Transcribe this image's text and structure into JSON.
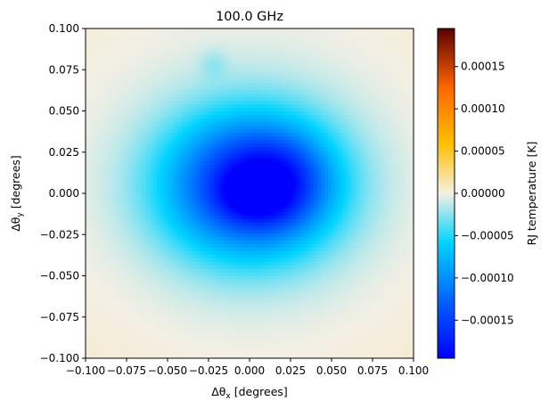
{
  "chart_data": {
    "type": "heatmap",
    "title": "100.0 GHz",
    "xlabel": "Δθx [degrees]",
    "ylabel": "Δθy [degrees]",
    "xlabel_parts": {
      "prefix": "Δθ",
      "sub": "x",
      "suffix": " [degrees]"
    },
    "ylabel_parts": {
      "prefix": "Δθ",
      "sub": "y",
      "suffix": " [degrees]"
    },
    "xlim": [
      -0.1,
      0.1
    ],
    "ylim": [
      -0.1,
      0.1
    ],
    "x_ticks": [
      -0.1,
      -0.075,
      -0.05,
      -0.025,
      0.0,
      0.025,
      0.05,
      0.075,
      0.1
    ],
    "x_tick_labels": [
      "−0.100",
      "−0.075",
      "−0.050",
      "−0.025",
      "0.000",
      "0.025",
      "0.050",
      "0.075",
      "0.100"
    ],
    "y_ticks": [
      0.1,
      0.075,
      0.05,
      0.025,
      0.0,
      -0.025,
      -0.05,
      -0.075,
      -0.1
    ],
    "y_tick_labels": [
      "0.100",
      "0.075",
      "0.050",
      "0.025",
      "0.000",
      "−0.025",
      "−0.050",
      "−0.075",
      "−0.100"
    ],
    "grid": false,
    "colorbar": {
      "label": "RJ temperature [K]",
      "range": [
        -0.000195,
        0.000195
      ],
      "ticks": [
        0.00015,
        0.0001,
        5e-05,
        0.0,
        -5e-05,
        -0.0001,
        -0.00015
      ],
      "tick_labels": [
        "0.00015",
        "0.00010",
        "0.00005",
        "0.00000",
        "−0.00005",
        "−0.00010",
        "−0.00015"
      ],
      "colors": [
        [
          0.0,
          "#0000ff"
        ],
        [
          0.17,
          "#0060ff"
        ],
        [
          0.35,
          "#00d4ff"
        ],
        [
          0.5,
          "#f4efe4"
        ],
        [
          0.65,
          "#ffc000"
        ],
        [
          0.82,
          "#ff6600"
        ],
        [
          1.0,
          "#5a0000"
        ]
      ]
    },
    "features": [
      {
        "kind": "gaussian",
        "x": 0.0,
        "y": 0.005,
        "sx": 0.036,
        "sy": 0.03,
        "amp": -0.00017
      },
      {
        "kind": "gaussian",
        "x": 0.018,
        "y": 0.008,
        "sx": 0.02,
        "sy": 0.018,
        "amp": -6e-05
      },
      {
        "kind": "gaussian",
        "x": 0.01,
        "y": -0.005,
        "sx": 0.012,
        "sy": 0.01,
        "amp": -2e-05
      },
      {
        "kind": "gaussian",
        "x": -0.005,
        "y": 0.0,
        "sx": 0.01,
        "sy": 0.01,
        "amp": -3e-05
      },
      {
        "kind": "gaussian",
        "x": 0.0,
        "y": 0.01,
        "sx": 0.09,
        "sy": 0.085,
        "amp": -1.6e-05
      },
      {
        "kind": "gaussian",
        "x": -0.022,
        "y": 0.079,
        "sx": 0.006,
        "sy": 0.006,
        "amp": -1.4e-05
      }
    ],
    "background_value": 7.5e-06
  }
}
